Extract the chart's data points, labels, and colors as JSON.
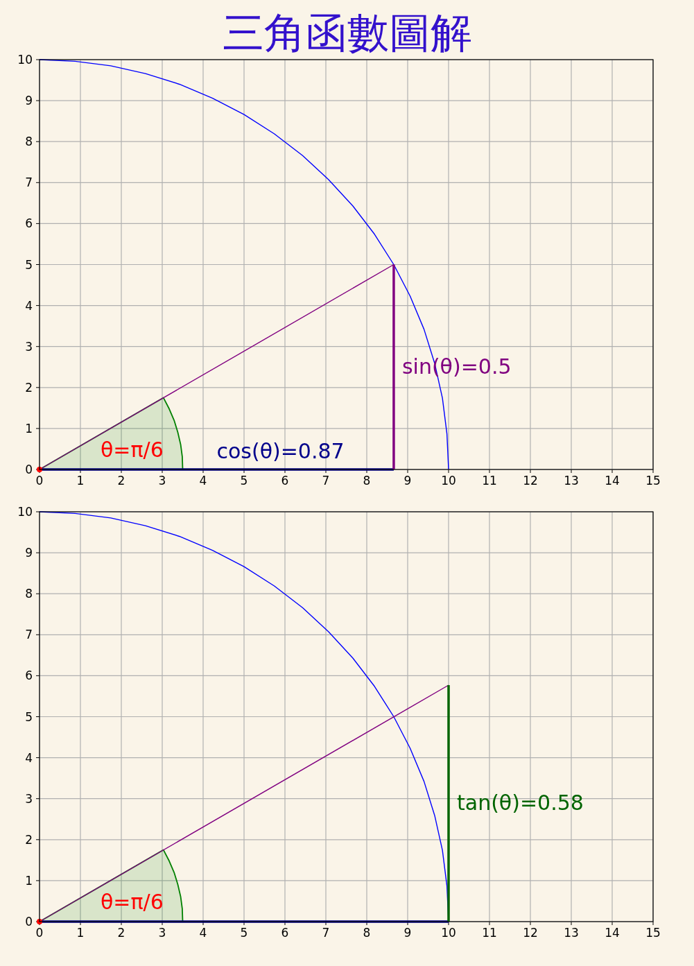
{
  "chart_data": [
    {
      "type": "line",
      "title": "三角函數圖解",
      "xlim": [
        0,
        15
      ],
      "ylim": [
        0,
        10
      ],
      "xticks": [
        0,
        1,
        2,
        3,
        4,
        5,
        6,
        7,
        8,
        9,
        10,
        11,
        12,
        13,
        14,
        15
      ],
      "yticks": [
        0,
        1,
        2,
        3,
        4,
        5,
        6,
        7,
        8,
        9,
        10
      ],
      "grid": true,
      "series": [
        {
          "type": "area",
          "color": "#008000",
          "x": [
            0,
            3.03,
            3.17,
            3.29,
            3.38,
            3.45,
            3.49,
            3.5
          ],
          "values": [
            0,
            1.75,
            1.48,
            1.2,
            0.91,
            0.61,
            0.31,
            0
          ]
        },
        {
          "color": "#0000ff",
          "x": [
            0,
            0.87,
            1.74,
            2.59,
            3.42,
            4.23,
            5,
            5.74,
            6.43,
            7.07,
            7.66,
            8.19,
            8.66,
            9.06,
            9.4,
            9.66,
            9.85,
            9.96,
            10
          ],
          "values": [
            10,
            9.96,
            9.85,
            9.66,
            9.4,
            9.06,
            8.66,
            8.19,
            7.66,
            7.07,
            6.43,
            5.74,
            5,
            4.23,
            3.42,
            2.59,
            1.74,
            0.87,
            0
          ]
        },
        {
          "color": "#800080",
          "x": [
            0,
            8.66
          ],
          "values": [
            0,
            5
          ]
        },
        {
          "name": "cos(θ)=0.87",
          "color": "#00008b",
          "x": [
            0,
            8.66
          ],
          "values": [
            0,
            0
          ]
        },
        {
          "name": "sin(θ)=0.5",
          "color": "#800080",
          "x": [
            8.66,
            8.66
          ],
          "values": [
            0,
            5
          ]
        },
        {
          "type": "scatter",
          "name": "θ=π/6",
          "color": "#ff0000",
          "x": [
            0
          ],
          "values": [
            0
          ]
        }
      ]
    },
    {
      "type": "line",
      "xlim": [
        0,
        15
      ],
      "ylim": [
        0,
        10
      ],
      "xticks": [
        0,
        1,
        2,
        3,
        4,
        5,
        6,
        7,
        8,
        9,
        10,
        11,
        12,
        13,
        14,
        15
      ],
      "yticks": [
        0,
        1,
        2,
        3,
        4,
        5,
        6,
        7,
        8,
        9,
        10
      ],
      "grid": true,
      "series": [
        {
          "type": "area",
          "color": "#008000",
          "x": [
            0,
            3.03,
            3.17,
            3.29,
            3.38,
            3.45,
            3.49,
            3.5
          ],
          "values": [
            0,
            1.75,
            1.48,
            1.2,
            0.91,
            0.61,
            0.31,
            0
          ]
        },
        {
          "color": "#0000ff",
          "x": [
            0,
            0.87,
            1.74,
            2.59,
            3.42,
            4.23,
            5,
            5.74,
            6.43,
            7.07,
            7.66,
            8.19,
            8.66,
            9.06,
            9.4,
            9.66,
            9.85,
            9.96,
            10
          ],
          "values": [
            10,
            9.96,
            9.85,
            9.66,
            9.4,
            9.06,
            8.66,
            8.19,
            7.66,
            7.07,
            6.43,
            5.74,
            5,
            4.23,
            3.42,
            2.59,
            1.74,
            0.87,
            0
          ]
        },
        {
          "color": "#800080",
          "x": [
            0,
            10
          ],
          "values": [
            0,
            5.77
          ]
        },
        {
          "color": "#00008b",
          "x": [
            0,
            10
          ],
          "values": [
            0,
            0
          ]
        },
        {
          "name": "tan(θ)=0.58",
          "color": "#006400",
          "x": [
            10,
            10
          ],
          "values": [
            0,
            5.77
          ]
        },
        {
          "type": "scatter",
          "name": "θ=π/6",
          "color": "#ff0000",
          "x": [
            0
          ],
          "values": [
            0
          ]
        }
      ]
    }
  ]
}
